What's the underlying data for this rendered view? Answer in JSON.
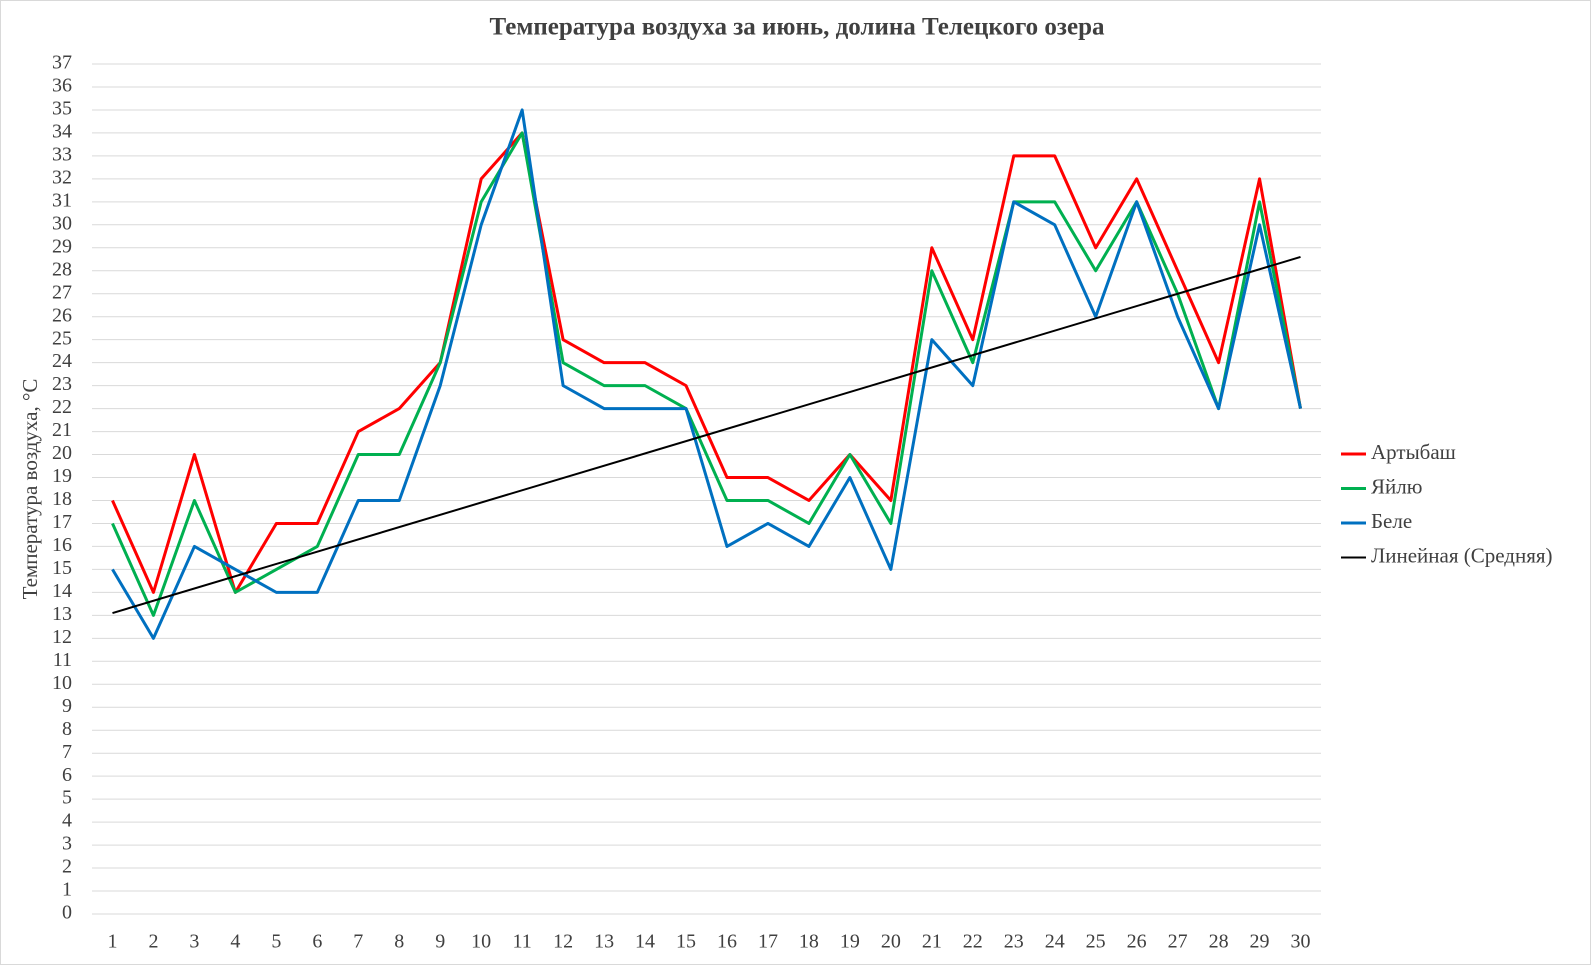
{
  "chart_data": {
    "type": "line",
    "title": "Температура воздуха за июнь, долина Телецкого озера",
    "y_label": "Температура воздуха, °C",
    "categories": [
      "1",
      "2",
      "3",
      "4",
      "5",
      "6",
      "7",
      "8",
      "9",
      "10",
      "11",
      "12",
      "13",
      "14",
      "15",
      "16",
      "17",
      "18",
      "19",
      "20",
      "21",
      "22",
      "23",
      "24",
      "25",
      "26",
      "27",
      "28",
      "29",
      "30"
    ],
    "series": [
      {
        "name": "Артыбаш",
        "color": "#ff0000",
        "values": [
          18,
          14,
          20,
          14,
          17,
          17,
          21,
          22,
          24,
          32,
          34,
          25,
          24,
          24,
          23,
          19,
          19,
          18,
          20,
          18,
          29,
          25,
          33,
          33,
          29,
          32,
          28,
          24,
          32,
          22
        ]
      },
      {
        "name": "Яйлю",
        "color": "#00b050",
        "values": [
          17,
          13,
          18,
          14,
          15,
          16,
          20,
          20,
          24,
          31,
          34,
          24,
          23,
          23,
          22,
          18,
          18,
          17,
          20,
          17,
          28,
          24,
          31,
          31,
          28,
          31,
          27,
          22,
          31,
          22
        ]
      },
      {
        "name": "Беле",
        "color": "#0070c0",
        "values": [
          15,
          12,
          16,
          15,
          14,
          14,
          18,
          18,
          23,
          30,
          35,
          23,
          22,
          22,
          22,
          16,
          17,
          16,
          19,
          15,
          25,
          23,
          31,
          30,
          26,
          31,
          26,
          22,
          30,
          22
        ]
      }
    ],
    "trendline": {
      "name": "Линейная (Средняя)",
      "color": "#000000",
      "values": [
        13.1,
        28.6
      ]
    },
    "ylim": [
      0,
      37
    ],
    "yticks": [
      0,
      1,
      2,
      3,
      4,
      5,
      6,
      7,
      8,
      9,
      10,
      11,
      12,
      13,
      14,
      15,
      16,
      17,
      18,
      19,
      20,
      21,
      22,
      23,
      24,
      25,
      26,
      27,
      28,
      29,
      30,
      31,
      32,
      33,
      34,
      35,
      36,
      37
    ],
    "grid": true,
    "legend": "right"
  }
}
